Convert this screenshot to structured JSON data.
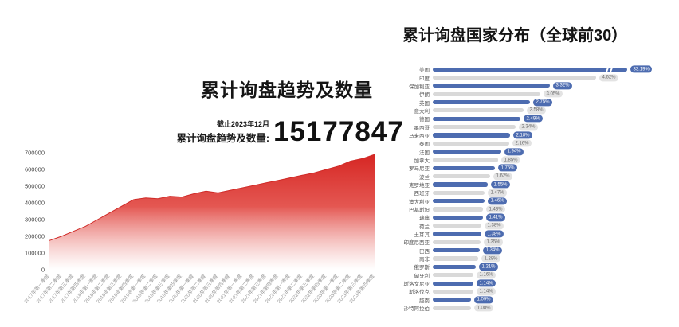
{
  "left_chart": {
    "title": "累计询盘趋势及数量",
    "asof_label": "截止2023年12月",
    "stat_label": "累计询盘趋势及数量:",
    "stat_value": "15177847"
  },
  "right_chart": {
    "title": "累计询盘国家分布（全球前30）"
  },
  "colors": {
    "area_red": "#d62623",
    "area_red_fade": "#ffffff",
    "bar_blue": "#4d6cb0",
    "bar_grey": "#d9d9d9",
    "badge_grey_bg": "#e3e3e3",
    "axis_text": "#999999",
    "ytick_text": "#444444"
  },
  "chart_data": [
    {
      "type": "area",
      "title": "累计询盘趋势及数量",
      "x": [
        "2017年第一季度",
        "2017年第二季度",
        "2017年第三季度",
        "2017年第四季度",
        "2018年第一季度",
        "2018年第二季度",
        "2018年第三季度",
        "2018年第四季度",
        "2019年第一季度",
        "2019年第二季度",
        "2019年第三季度",
        "2019年第四季度",
        "2020年第一季度",
        "2020年第二季度",
        "2020年第三季度",
        "2020年第四季度",
        "2021年第一季度",
        "2021年第二季度",
        "2021年第三季度",
        "2021年第四季度",
        "2022年第一季度",
        "2022年第二季度",
        "2022年第三季度",
        "2022年第四季度",
        "2023年第一季度",
        "2023年第二季度",
        "2023年第三季度",
        "2023年第四季度"
      ],
      "values": [
        175000,
        200000,
        230000,
        260000,
        300000,
        340000,
        380000,
        420000,
        430000,
        425000,
        440000,
        435000,
        455000,
        470000,
        460000,
        475000,
        490000,
        505000,
        520000,
        535000,
        550000,
        565000,
        580000,
        600000,
        620000,
        650000,
        665000,
        690000
      ],
      "ylim": [
        0,
        700000
      ],
      "yticks": [
        0,
        100000,
        200000,
        300000,
        400000,
        500000,
        600000,
        700000
      ],
      "grid": false,
      "legend": "none",
      "annotation_asof": "截止2023年12月",
      "annotation_total": 15177847
    },
    {
      "type": "bar",
      "orientation": "horizontal",
      "title": "累计询盘国家分布（全球前30）",
      "unit": "%",
      "broken_axis_category": "美国",
      "bar_color_odd_rows": "#4d6cb0",
      "bar_color_even_rows": "#d9d9d9",
      "categories": [
        "美国",
        "印度",
        "保加利亚",
        "伊朗",
        "英国",
        "意大利",
        "德国",
        "墨西哥",
        "马来西亚",
        "泰国",
        "法国",
        "加拿大",
        "罗马尼亚",
        "波兰",
        "克罗地亚",
        "西班牙",
        "澳大利亚",
        "巴基斯坦",
        "瑞典",
        "荷兰",
        "土耳其",
        "印度尼西亚",
        "巴西",
        "南非",
        "俄罗斯",
        "匈牙利",
        "斯洛文尼亚",
        "斯洛伐克",
        "越南",
        "沙特阿拉伯"
      ],
      "values": [
        33.19,
        4.62,
        3.32,
        3.05,
        2.75,
        2.58,
        2.49,
        2.34,
        2.18,
        2.16,
        1.94,
        1.85,
        1.75,
        1.62,
        1.55,
        1.47,
        1.46,
        1.43,
        1.41,
        1.38,
        1.38,
        1.35,
        1.34,
        1.28,
        1.21,
        1.16,
        1.14,
        1.14,
        1.09,
        1.08
      ],
      "labels": [
        "33.19%",
        "4.62%",
        "3.32%",
        "3.05%",
        "2.75%",
        "2.58%",
        "2.49%",
        "2.34%",
        "2.18%",
        "2.16%",
        "1.94%",
        "1.85%",
        "1.75%",
        "1.62%",
        "1.55%",
        "1.47%",
        "1.46%",
        "1.43%",
        "1.41%",
        "1.38%",
        "1.38%",
        "1.35%",
        "1.34%",
        "1.28%",
        "1.21%",
        "1.16%",
        "1.14%",
        "1.14%",
        "1.09%",
        "1.08%"
      ]
    }
  ]
}
